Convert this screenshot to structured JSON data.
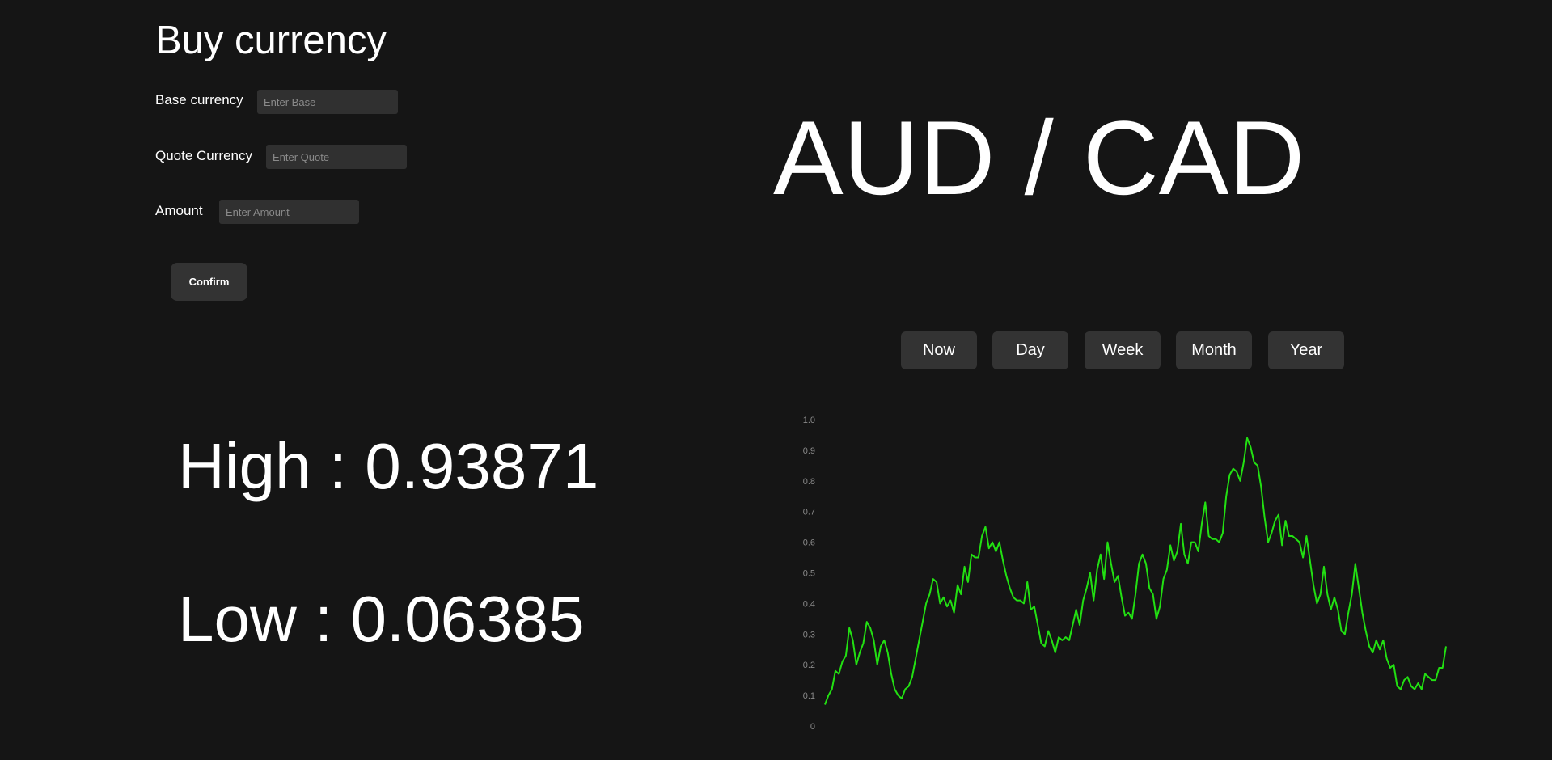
{
  "form": {
    "title": "Buy currency",
    "base_label": "Base currency",
    "base_placeholder": "Enter Base",
    "quote_label": "Quote Currency",
    "quote_placeholder": "Enter Quote",
    "amount_label": "Amount",
    "amount_placeholder": "Enter Amount",
    "confirm_label": "Confirm"
  },
  "stats": {
    "high": "High : 0.93871",
    "low": "Low : 0.06385"
  },
  "pair": "AUD / CAD",
  "ranges": [
    "Now",
    "Day",
    "Week",
    "Month",
    "Year"
  ],
  "colors": {
    "background": "#151515",
    "panel": "#333333",
    "line": "#22e012",
    "tick_text": "#8a8a8a"
  },
  "chart_data": {
    "type": "line",
    "title": "",
    "xlabel": "",
    "ylabel": "",
    "ylim": [
      0,
      1.0
    ],
    "y_ticks": [
      "0",
      "0.1",
      "0.2",
      "0.3",
      "0.4",
      "0.5",
      "0.6",
      "0.7",
      "0.8",
      "0.9",
      "1.0"
    ],
    "grid": false,
    "legend": "none",
    "series": [
      {
        "values": [
          0.07,
          0.1,
          0.12,
          0.18,
          0.17,
          0.21,
          0.23,
          0.32,
          0.28,
          0.2,
          0.24,
          0.27,
          0.34,
          0.32,
          0.28,
          0.2,
          0.26,
          0.28,
          0.24,
          0.17,
          0.12,
          0.1,
          0.09,
          0.12,
          0.13,
          0.16,
          0.22,
          0.28,
          0.34,
          0.4,
          0.43,
          0.48,
          0.47,
          0.4,
          0.42,
          0.39,
          0.41,
          0.37,
          0.46,
          0.43,
          0.52,
          0.47,
          0.56,
          0.55,
          0.55,
          0.62,
          0.65,
          0.58,
          0.6,
          0.57,
          0.6,
          0.54,
          0.49,
          0.45,
          0.42,
          0.41,
          0.41,
          0.4,
          0.47,
          0.38,
          0.39,
          0.33,
          0.27,
          0.26,
          0.31,
          0.28,
          0.24,
          0.29,
          0.28,
          0.29,
          0.28,
          0.33,
          0.38,
          0.33,
          0.41,
          0.45,
          0.5,
          0.41,
          0.51,
          0.56,
          0.48,
          0.6,
          0.53,
          0.47,
          0.49,
          0.42,
          0.36,
          0.37,
          0.35,
          0.43,
          0.53,
          0.56,
          0.53,
          0.45,
          0.43,
          0.35,
          0.39,
          0.48,
          0.51,
          0.59,
          0.54,
          0.57,
          0.66,
          0.56,
          0.53,
          0.6,
          0.6,
          0.57,
          0.66,
          0.73,
          0.62,
          0.61,
          0.61,
          0.6,
          0.63,
          0.75,
          0.82,
          0.84,
          0.83,
          0.8,
          0.86,
          0.94,
          0.91,
          0.86,
          0.85,
          0.78,
          0.68,
          0.6,
          0.63,
          0.67,
          0.69,
          0.59,
          0.67,
          0.62,
          0.62,
          0.61,
          0.6,
          0.55,
          0.62,
          0.54,
          0.46,
          0.4,
          0.43,
          0.52,
          0.43,
          0.38,
          0.42,
          0.38,
          0.31,
          0.3,
          0.37,
          0.43,
          0.53,
          0.45,
          0.37,
          0.31,
          0.26,
          0.24,
          0.28,
          0.25,
          0.28,
          0.22,
          0.19,
          0.2,
          0.13,
          0.12,
          0.15,
          0.16,
          0.13,
          0.12,
          0.14,
          0.12,
          0.17,
          0.16,
          0.15,
          0.15,
          0.19,
          0.19,
          0.26
        ]
      }
    ]
  }
}
